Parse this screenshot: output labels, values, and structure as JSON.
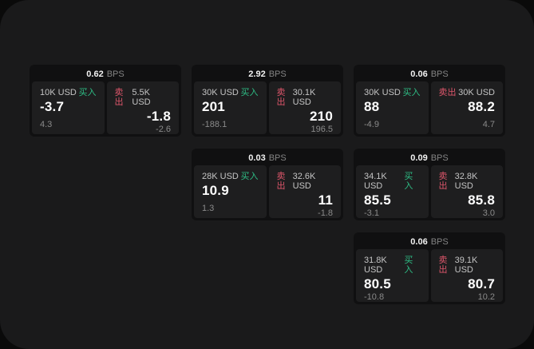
{
  "labels": {
    "bps_unit": "BPS",
    "buy": "买入",
    "sell": "卖出"
  },
  "colors": {
    "buy_green": "#2ebd85",
    "sell_red": "#dd566b",
    "surface": "#1a1a1b",
    "backdrop": "#0a0a0a",
    "card_bg": "#101011",
    "panel_bg": "#1e1e1f"
  },
  "cards": [
    {
      "bps": "0.62",
      "grid": {
        "col": 1,
        "row": 1
      },
      "buy": {
        "amount": "10K USD",
        "price": "-3.7",
        "change": "4.3"
      },
      "sell": {
        "amount": "5.5K USD",
        "price": "-1.8",
        "change": "-2.6"
      }
    },
    {
      "bps": "2.92",
      "grid": {
        "col": 2,
        "row": 1
      },
      "buy": {
        "amount": "30K USD",
        "price": "201",
        "change": "-188.1"
      },
      "sell": {
        "amount": "30.1K USD",
        "price": "210",
        "change": "196.5"
      }
    },
    {
      "bps": "0.06",
      "grid": {
        "col": 3,
        "row": 1
      },
      "buy": {
        "amount": "30K USD",
        "price": "88",
        "change": "-4.9"
      },
      "sell": {
        "amount": "30K USD",
        "price": "88.2",
        "change": "4.7"
      }
    },
    {
      "bps": "0.03",
      "grid": {
        "col": 2,
        "row": 2
      },
      "buy": {
        "amount": "28K USD",
        "price": "10.9",
        "change": "1.3"
      },
      "sell": {
        "amount": "32.6K USD",
        "price": "11",
        "change": "-1.8"
      }
    },
    {
      "bps": "0.09",
      "grid": {
        "col": 3,
        "row": 2
      },
      "buy": {
        "amount": "34.1K USD",
        "price": "85.5",
        "change": "-3.1"
      },
      "sell": {
        "amount": "32.8K USD",
        "price": "85.8",
        "change": "3.0"
      }
    },
    {
      "bps": "0.06",
      "grid": {
        "col": 3,
        "row": 3
      },
      "buy": {
        "amount": "31.8K USD",
        "price": "80.5",
        "change": "-10.8"
      },
      "sell": {
        "amount": "39.1K USD",
        "price": "80.7",
        "change": "10.2"
      }
    }
  ]
}
